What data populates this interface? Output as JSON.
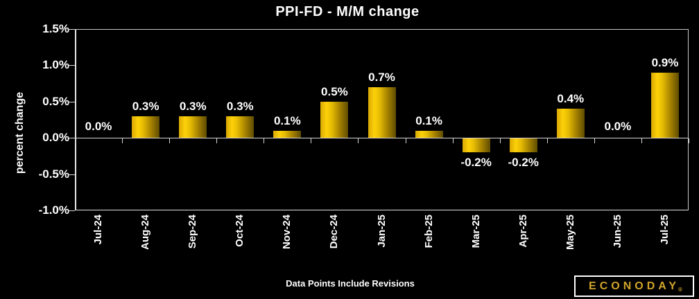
{
  "chart_data": {
    "type": "bar",
    "title": "PPI-FD - M/M change",
    "ylabel": "percent change",
    "xlabel": "",
    "categories": [
      "Jul-24",
      "Aug-24",
      "Sep-24",
      "Oct-24",
      "Nov-24",
      "Dec-24",
      "Jan-25",
      "Feb-25",
      "Mar-25",
      "Apr-25",
      "May-25",
      "Jun-25",
      "Jul-25"
    ],
    "values": [
      0.0,
      0.3,
      0.3,
      0.3,
      0.1,
      0.5,
      0.7,
      0.1,
      -0.2,
      -0.2,
      0.4,
      0.0,
      0.9
    ],
    "value_labels": [
      "0.0%",
      "0.3%",
      "0.3%",
      "0.3%",
      "0.1%",
      "0.5%",
      "0.7%",
      "0.1%",
      "-0.2%",
      "-0.2%",
      "0.4%",
      "0.0%",
      "0.9%"
    ],
    "ylim": [
      -1.0,
      1.5
    ],
    "yticks": [
      {
        "label": "1.5%",
        "value": 1.5
      },
      {
        "label": "1.0%",
        "value": 1.0
      },
      {
        "label": "0.5%",
        "value": 0.5
      },
      {
        "label": "0.0%",
        "value": 0.0
      },
      {
        "label": "-0.5%",
        "value": -0.5
      },
      {
        "label": "-1.0%",
        "value": -1.0
      }
    ],
    "grid": false,
    "legend": "none",
    "bar_color_gradient": [
      "#d8a703",
      "#fdd108",
      "#a98500",
      "#5e4b00"
    ]
  },
  "footer": {
    "note": "Data Points Include Revisions"
  },
  "logo": {
    "text": "ECONODAY",
    "reg": "®"
  },
  "colors": {
    "background": "#000000",
    "text": "#ffffff",
    "frame": "#d9d9d9",
    "logo_gold": "#d0a52b"
  }
}
